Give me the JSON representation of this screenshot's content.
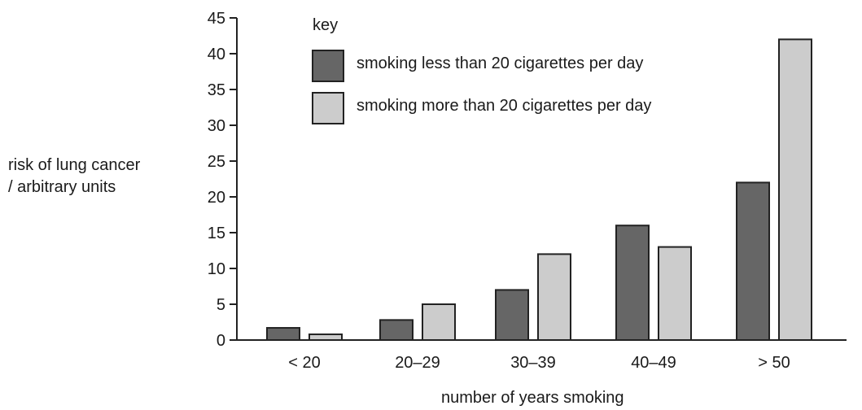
{
  "chart_data": {
    "type": "bar",
    "ylabel_lines": [
      "risk of lung cancer",
      "/ arbitrary units"
    ],
    "xlabel": "number of years smoking",
    "ylim": [
      0,
      45
    ],
    "yticks": [
      0,
      5,
      10,
      15,
      20,
      25,
      30,
      35,
      40,
      45
    ],
    "categories": [
      "< 20",
      "20–29",
      "30–39",
      "40–49",
      "> 50"
    ],
    "legend_title": "key",
    "legend_placement": "top-left",
    "grid": false,
    "series": [
      {
        "name": "smoking less than 20 cigarettes per day",
        "color": "#666666",
        "values": [
          1.7,
          2.8,
          7,
          16,
          22
        ]
      },
      {
        "name": "smoking more than 20 cigarettes per day",
        "color": "#cccccc",
        "values": [
          0.8,
          5,
          12,
          13,
          42
        ]
      }
    ]
  }
}
